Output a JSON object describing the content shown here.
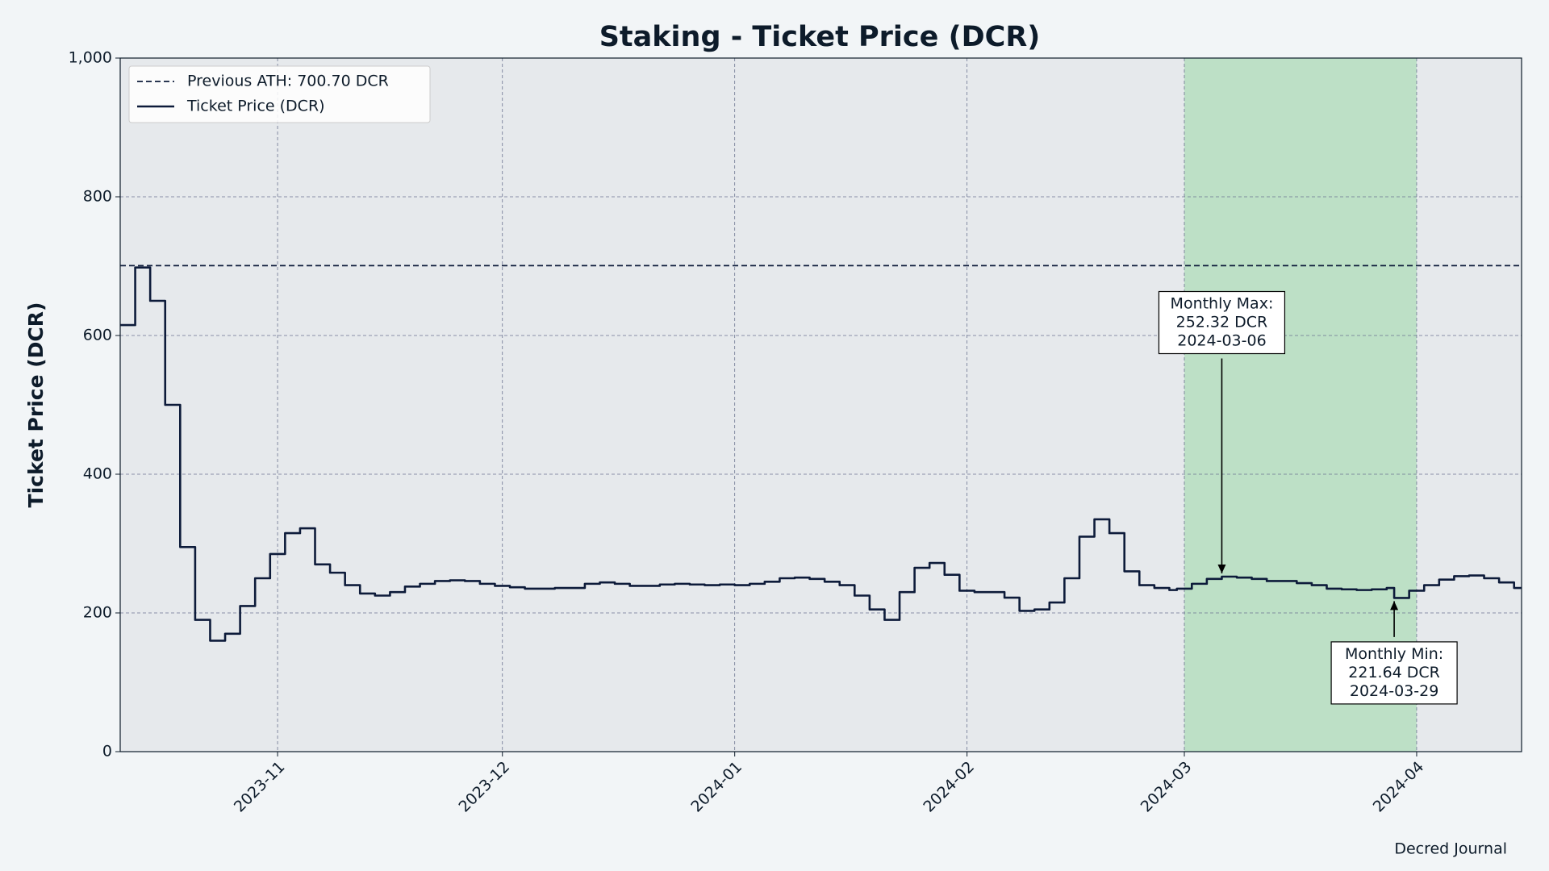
{
  "chart_data": {
    "type": "line",
    "title": "Staking - Ticket Price (DCR)",
    "ylabel": "Ticket Price (DCR)",
    "source": "Decred Journal",
    "xlim": [
      "2023-10-11",
      "2024-04-15"
    ],
    "xticks": [
      {
        "value": "2023-11-01",
        "label": "2023-11"
      },
      {
        "value": "2023-12-01",
        "label": "2023-12"
      },
      {
        "value": "2024-01-01",
        "label": "2024-01"
      },
      {
        "value": "2024-02-01",
        "label": "2024-02"
      },
      {
        "value": "2024-03-01",
        "label": "2024-03"
      },
      {
        "value": "2024-04-01",
        "label": "2024-04"
      }
    ],
    "ylim": [
      0,
      1000
    ],
    "yticks": [
      0,
      200,
      400,
      600,
      800,
      {
        "value": 1000,
        "label": "1,000"
      }
    ],
    "grid": true,
    "legend": "upper left",
    "highlight": {
      "start": "2024-03-01",
      "end": "2024-04-01",
      "color": "#bde0c6"
    },
    "reference_lines": [
      {
        "name": "Previous ATH: 700.70 DCR",
        "value": 700.7,
        "color": "#0d1b3a",
        "style": "dashed"
      }
    ],
    "series": [
      {
        "name": "Ticket Price (DCR)",
        "color": "#0d1b3a",
        "x": [
          "2023-10-11",
          "2023-10-13",
          "2023-10-15",
          "2023-10-17",
          "2023-10-19",
          "2023-10-21",
          "2023-10-23",
          "2023-10-25",
          "2023-10-27",
          "2023-10-29",
          "2023-10-31",
          "2023-11-02",
          "2023-11-04",
          "2023-11-06",
          "2023-11-08",
          "2023-11-10",
          "2023-11-12",
          "2023-11-14",
          "2023-11-16",
          "2023-11-18",
          "2023-11-20",
          "2023-11-22",
          "2023-11-24",
          "2023-11-26",
          "2023-11-28",
          "2023-11-30",
          "2023-12-02",
          "2023-12-04",
          "2023-12-06",
          "2023-12-08",
          "2023-12-10",
          "2023-12-12",
          "2023-12-14",
          "2023-12-16",
          "2023-12-18",
          "2023-12-20",
          "2023-12-22",
          "2023-12-24",
          "2023-12-26",
          "2023-12-28",
          "2023-12-30",
          "2024-01-01",
          "2024-01-03",
          "2024-01-05",
          "2024-01-07",
          "2024-01-09",
          "2024-01-11",
          "2024-01-13",
          "2024-01-15",
          "2024-01-17",
          "2024-01-19",
          "2024-01-21",
          "2024-01-23",
          "2024-01-25",
          "2024-01-27",
          "2024-01-29",
          "2024-01-31",
          "2024-02-02",
          "2024-02-04",
          "2024-02-06",
          "2024-02-08",
          "2024-02-10",
          "2024-02-12",
          "2024-02-14",
          "2024-02-16",
          "2024-02-18",
          "2024-02-20",
          "2024-02-22",
          "2024-02-24",
          "2024-02-26",
          "2024-02-28",
          "2024-02-29",
          "2024-03-02",
          "2024-03-04",
          "2024-03-06",
          "2024-03-08",
          "2024-03-10",
          "2024-03-12",
          "2024-03-14",
          "2024-03-16",
          "2024-03-18",
          "2024-03-20",
          "2024-03-22",
          "2024-03-24",
          "2024-03-26",
          "2024-03-28",
          "2024-03-29",
          "2024-03-31",
          "2024-04-02",
          "2024-04-04",
          "2024-04-06",
          "2024-04-08",
          "2024-04-10",
          "2024-04-12",
          "2024-04-14"
        ],
        "values": [
          615,
          698,
          650,
          500,
          295,
          190,
          160,
          170,
          210,
          250,
          285,
          315,
          322,
          270,
          258,
          240,
          228,
          225,
          230,
          238,
          242,
          246,
          247,
          246,
          242,
          239,
          237,
          235,
          235,
          236,
          236,
          242,
          244,
          242,
          239,
          239,
          241,
          242,
          241,
          240,
          241,
          240,
          242,
          245,
          250,
          251,
          249,
          245,
          240,
          225,
          205,
          190,
          230,
          265,
          272,
          255,
          232,
          230,
          230,
          222,
          203,
          205,
          215,
          250,
          310,
          335,
          315,
          260,
          240,
          236,
          233,
          235,
          242,
          249,
          252.32,
          251,
          249,
          246,
          246,
          243,
          240,
          235,
          234,
          233,
          234,
          236,
          221.64,
          232,
          240,
          248,
          253,
          254,
          250,
          244,
          236
        ]
      }
    ],
    "annotations": [
      {
        "lines": [
          "Monthly Max:",
          "252.32 DCR",
          "2024-03-06"
        ],
        "x": "2024-03-06",
        "y": 252.32,
        "placement": "above"
      },
      {
        "lines": [
          "Monthly Min:",
          "221.64 DCR",
          "2024-03-29"
        ],
        "x": "2024-03-29",
        "y": 221.64,
        "placement": "below"
      }
    ]
  }
}
